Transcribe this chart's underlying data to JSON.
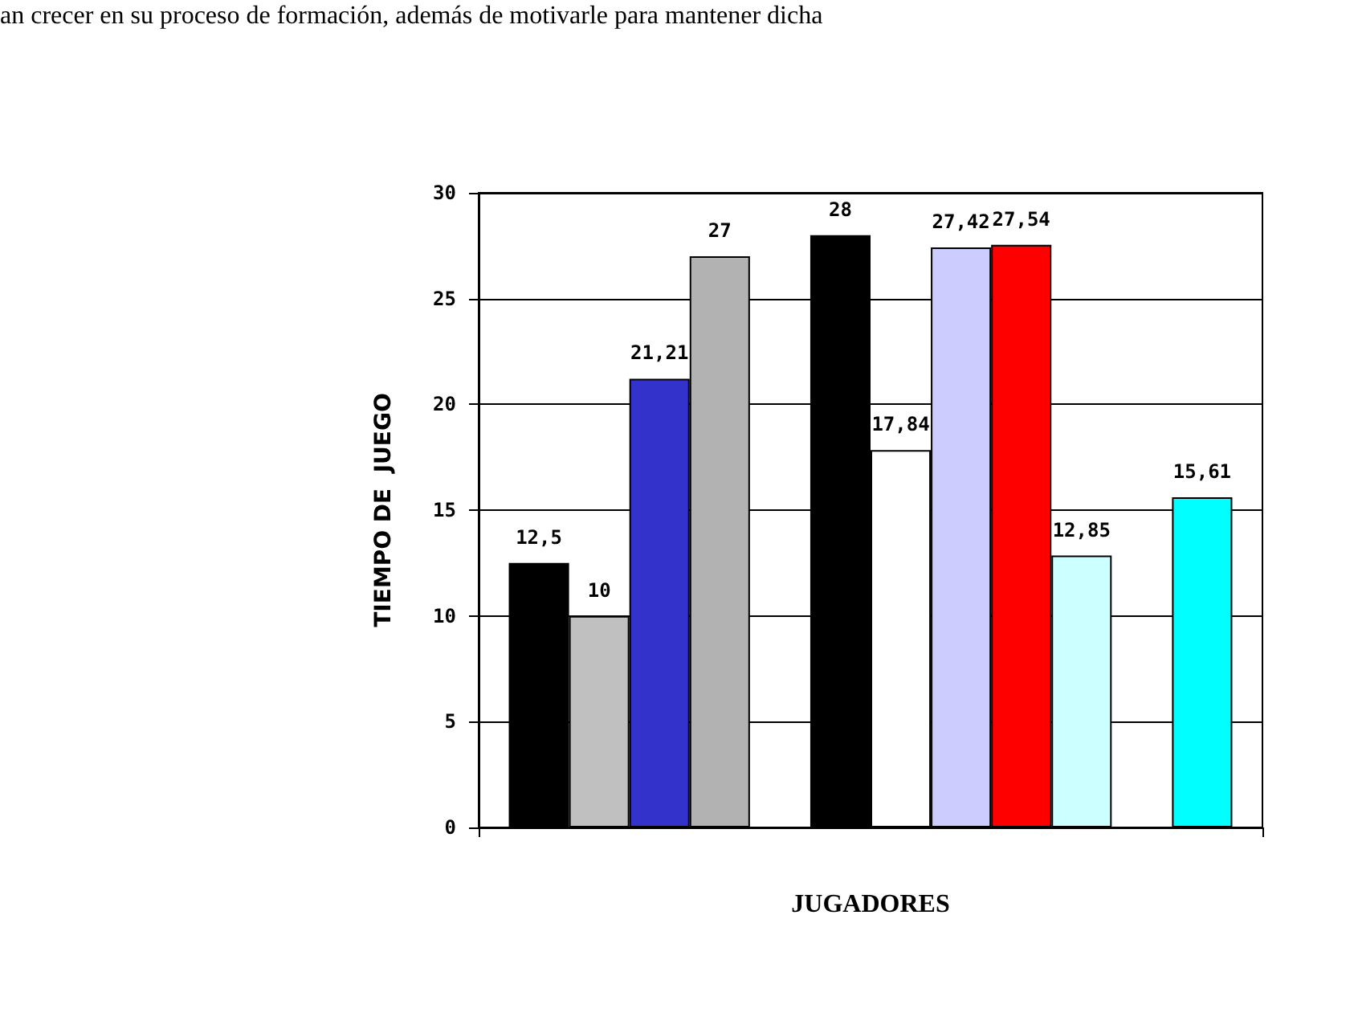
{
  "chart_data": {
    "type": "bar",
    "xlabel": "JUGADORES",
    "ylabel": "TIEMPO DE  JUEGO",
    "annotations": [
      "an crecer en su proceso de formación, además de motivarle para mantener dicha"
    ],
    "categories": [
      null,
      null,
      null,
      null,
      null,
      null,
      null,
      null,
      null,
      null,
      null,
      null
    ],
    "values": [
      12.5,
      10,
      21.21,
      27,
      null,
      28,
      17.84,
      27.42,
      27.54,
      12.85,
      null,
      15.61
    ],
    "colors": [
      "#000000",
      "#c0c0c0",
      "#3333cc",
      "#b2b2b2",
      "#ffffff",
      "#000000",
      "#ffffff",
      "#ccccff",
      "#ff0000",
      "#ccffff",
      "#ffffff",
      "#00ffff"
    ],
    "value_labels": [
      "12,5",
      "10",
      "21,21",
      "27",
      null,
      "28",
      "17,84",
      "27,42",
      "27,54",
      "12,85",
      null,
      "15,61"
    ],
    "ylim": [
      0,
      30
    ],
    "yticks": [
      0,
      5,
      10,
      15,
      20,
      25,
      30
    ],
    "grid": "y",
    "tick_labels": "y"
  }
}
